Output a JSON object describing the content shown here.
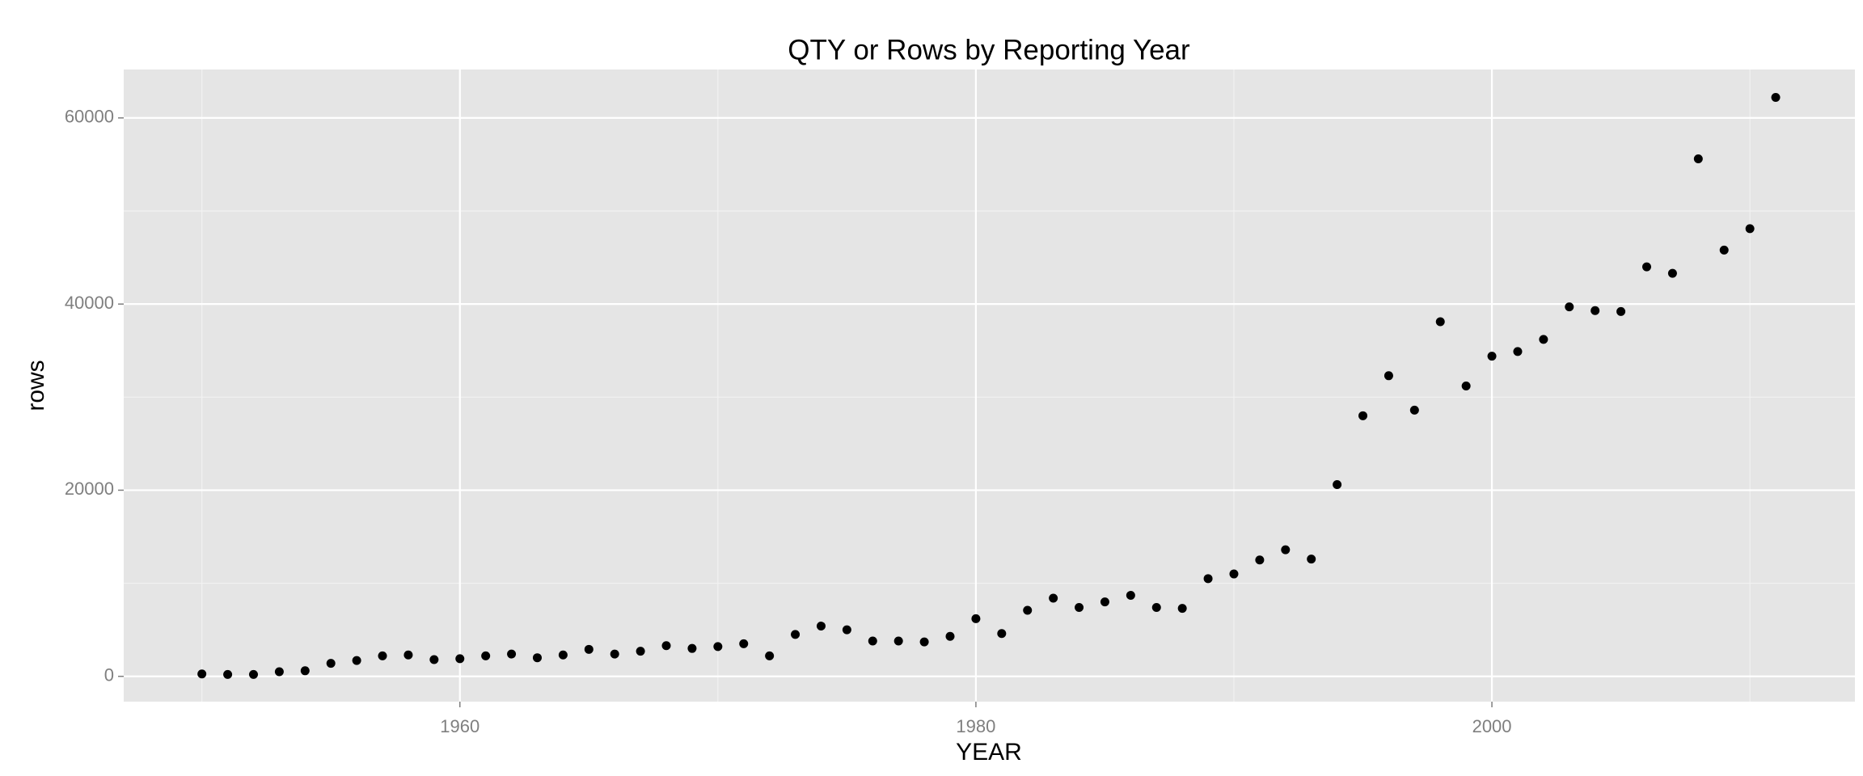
{
  "chart_data": {
    "type": "scatter",
    "title": "QTY or Rows by Reporting Year",
    "x_label": "YEAR",
    "y_label": "rows",
    "x": [
      1950,
      1951,
      1952,
      1953,
      1954,
      1955,
      1956,
      1957,
      1958,
      1959,
      1960,
      1961,
      1962,
      1963,
      1964,
      1965,
      1966,
      1967,
      1968,
      1969,
      1970,
      1971,
      1972,
      1973,
      1974,
      1975,
      1976,
      1977,
      1978,
      1979,
      1980,
      1981,
      1982,
      1983,
      1984,
      1985,
      1986,
      1987,
      1988,
      1989,
      1990,
      1991,
      1992,
      1993,
      1994,
      1995,
      1996,
      1997,
      1998,
      1999,
      2000,
      2001,
      2002,
      2003,
      2004,
      2005,
      2006,
      2007,
      2008,
      2009,
      2010,
      2011
    ],
    "values": [
      260,
      200,
      200,
      500,
      600,
      1400,
      1700,
      2200,
      2300,
      1800,
      1900,
      2200,
      2400,
      2000,
      2300,
      2900,
      2400,
      2700,
      3300,
      3000,
      3200,
      3500,
      2200,
      4500,
      5400,
      5000,
      3800,
      3800,
      3700,
      4300,
      6200,
      4600,
      7100,
      8400,
      7400,
      8000,
      8700,
      7400,
      7300,
      10500,
      11000,
      12500,
      13600,
      12600,
      20600,
      28000,
      32300,
      28600,
      38100,
      31200,
      34400,
      34900,
      36200,
      39700,
      39300,
      39200,
      44000,
      43300,
      55600,
      45800,
      48100,
      62200
    ],
    "color": "#000000",
    "xlim": [
      1946.97,
      2014.07
    ],
    "xticks": [
      1960,
      1980,
      2000
    ],
    "ylim": [
      -2717,
      65200
    ],
    "yticks": [
      0,
      20000,
      40000,
      60000
    ],
    "grid": true
  }
}
